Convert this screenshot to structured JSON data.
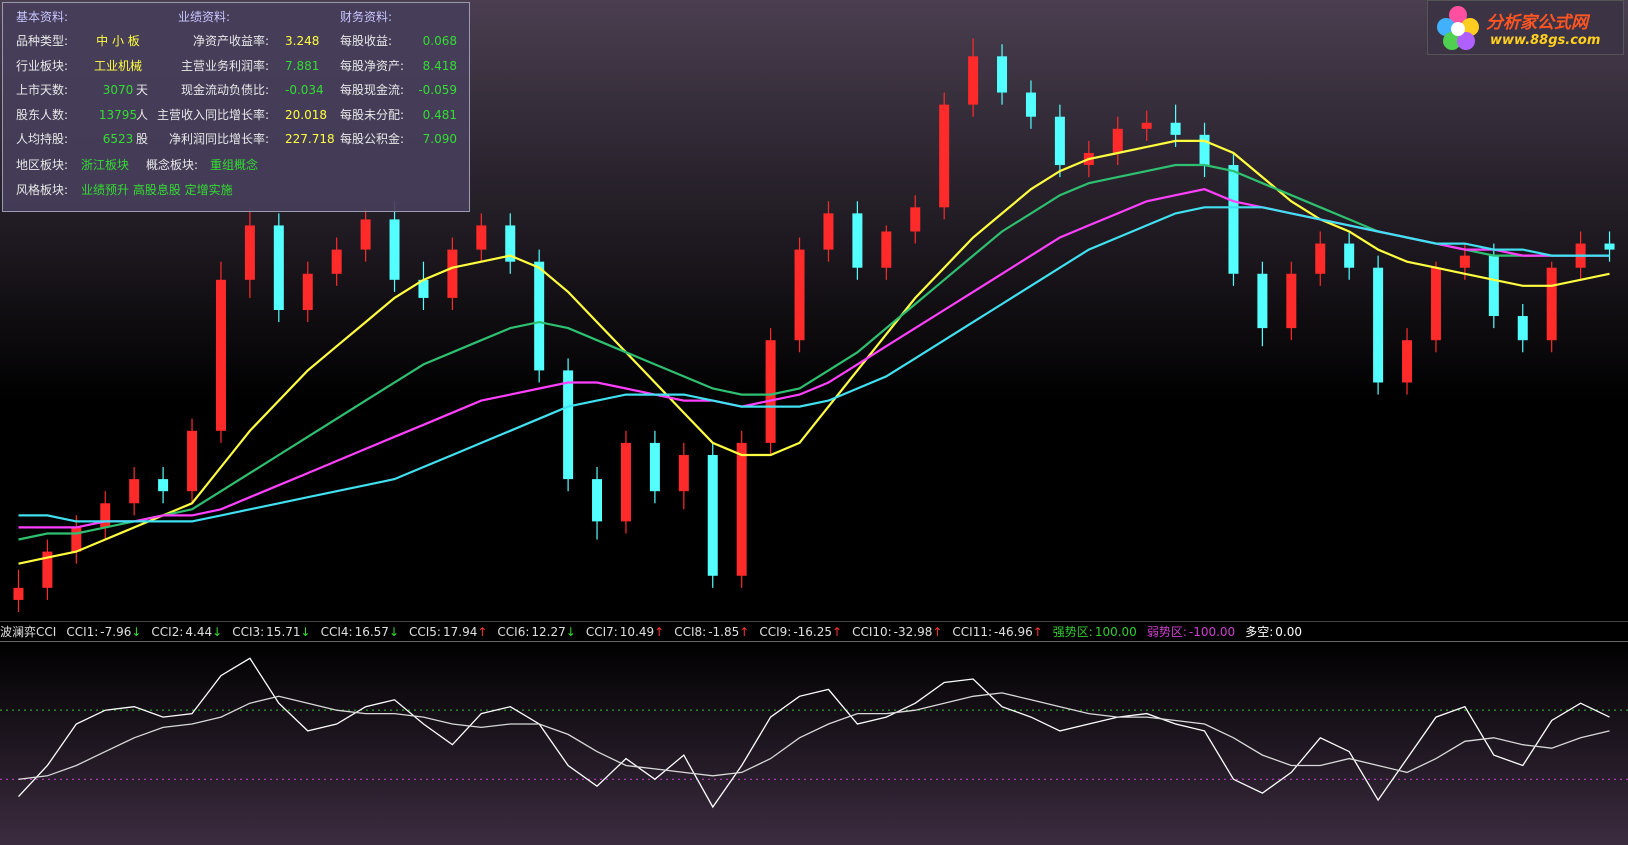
{
  "chart_data": [
    {
      "type": "candlestick",
      "ylim": [
        0,
        100
      ],
      "open": [
        2,
        4,
        10,
        14,
        18,
        22,
        20,
        30,
        55,
        64,
        50,
        56,
        60,
        65,
        55,
        52,
        60,
        64,
        58,
        40,
        22,
        15,
        28,
        20,
        26,
        6,
        28,
        45,
        60,
        66,
        57,
        63,
        67,
        84,
        92,
        86,
        82,
        74,
        76,
        80,
        81,
        79,
        74,
        56,
        47,
        56,
        61,
        57,
        38,
        45,
        57,
        59,
        49,
        45,
        57,
        61
      ],
      "high": [
        7,
        12,
        16,
        20,
        24,
        24,
        32,
        58,
        67,
        66,
        58,
        62,
        67,
        68,
        58,
        62,
        66,
        66,
        60,
        42,
        24,
        30,
        30,
        28,
        28,
        30,
        47,
        62,
        68,
        68,
        64,
        69,
        86,
        95,
        94,
        88,
        84,
        78,
        82,
        83,
        84,
        81,
        76,
        58,
        58,
        63,
        63,
        59,
        47,
        58,
        61,
        61,
        51,
        58,
        63,
        63
      ],
      "low": [
        0,
        2,
        8,
        12,
        16,
        18,
        18,
        28,
        52,
        48,
        48,
        54,
        58,
        53,
        50,
        50,
        58,
        56,
        38,
        20,
        12,
        13,
        18,
        17,
        4,
        4,
        26,
        43,
        58,
        55,
        55,
        61,
        65,
        82,
        84,
        80,
        72,
        72,
        74,
        78,
        77,
        72,
        54,
        44,
        45,
        54,
        55,
        36,
        36,
        43,
        55,
        47,
        43,
        43,
        55,
        58
      ],
      "close": [
        4,
        10,
        14,
        18,
        22,
        20,
        30,
        55,
        64,
        50,
        56,
        60,
        65,
        55,
        52,
        60,
        64,
        58,
        40,
        22,
        15,
        28,
        20,
        26,
        6,
        28,
        45,
        60,
        66,
        57,
        63,
        67,
        84,
        92,
        86,
        82,
        74,
        76,
        80,
        81,
        79,
        74,
        56,
        47,
        56,
        61,
        57,
        38,
        45,
        57,
        59,
        49,
        45,
        57,
        61,
        60
      ],
      "up_color": "#ff2a2a",
      "down_color": "#54ffff",
      "moving_averages": [
        {
          "color": "#ffff40",
          "values": [
            8,
            9,
            10,
            12,
            14,
            16,
            18,
            24,
            30,
            35,
            40,
            44,
            48,
            52,
            55,
            57,
            58,
            59,
            57,
            53,
            48,
            43,
            38,
            33,
            28,
            26,
            26,
            28,
            34,
            40,
            46,
            52,
            57,
            62,
            66,
            70,
            73,
            75,
            76,
            77,
            78,
            78,
            76,
            72,
            68,
            65,
            63,
            60,
            58,
            57,
            56,
            55,
            54,
            54,
            55,
            56
          ]
        },
        {
          "color": "#2ec070",
          "values": [
            12,
            13,
            13,
            14,
            15,
            16,
            17,
            20,
            23,
            26,
            29,
            32,
            35,
            38,
            41,
            43,
            45,
            47,
            48,
            47,
            45,
            43,
            41,
            39,
            37,
            36,
            36,
            37,
            40,
            43,
            47,
            51,
            55,
            59,
            63,
            66,
            69,
            71,
            72,
            73,
            74,
            74,
            73,
            71,
            69,
            67,
            65,
            63,
            62,
            61,
            60,
            59,
            59,
            59,
            59,
            59
          ]
        },
        {
          "color": "#ff40ff",
          "values": [
            14,
            14,
            14,
            15,
            15,
            16,
            16,
            17,
            19,
            21,
            23,
            25,
            27,
            29,
            31,
            33,
            35,
            36,
            37,
            38,
            38,
            37,
            36,
            35,
            35,
            34,
            35,
            36,
            38,
            41,
            44,
            47,
            50,
            53,
            56,
            59,
            62,
            64,
            66,
            68,
            69,
            70,
            68,
            67,
            66,
            65,
            64,
            63,
            62,
            61,
            60,
            60,
            59,
            59,
            59,
            59
          ]
        },
        {
          "color": "#40e0f0",
          "values": [
            16,
            16,
            15,
            15,
            15,
            15,
            15,
            16,
            17,
            18,
            19,
            20,
            21,
            22,
            24,
            26,
            28,
            30,
            32,
            34,
            35,
            36,
            36,
            36,
            35,
            34,
            34,
            34,
            35,
            37,
            39,
            42,
            45,
            48,
            51,
            54,
            57,
            60,
            62,
            64,
            66,
            67,
            67,
            67,
            66,
            65,
            64,
            63,
            62,
            61,
            61,
            60,
            60,
            59,
            59,
            59
          ]
        }
      ]
    },
    {
      "type": "line",
      "title": "波澜弈CCI",
      "ylim": [
        -290,
        300
      ],
      "items": [
        {
          "label": "CCI1:",
          "value": "-7.96",
          "arrow": "↓",
          "arrow_color": "#33dd33"
        },
        {
          "label": "CCI2:",
          "value": "4.44",
          "arrow": "↓",
          "arrow_color": "#33dd33"
        },
        {
          "label": "CCI3:",
          "value": "15.71",
          "arrow": "↓",
          "arrow_color": "#33dd33"
        },
        {
          "label": "CCI4:",
          "value": "16.57",
          "arrow": "↓",
          "arrow_color": "#33dd33"
        },
        {
          "label": "CCI5:",
          "value": "17.94",
          "arrow": "↑",
          "arrow_color": "#ff3333"
        },
        {
          "label": "CCI6:",
          "value": "12.27",
          "arrow": "↓",
          "arrow_color": "#33dd33"
        },
        {
          "label": "CCI7:",
          "value": "10.49",
          "arrow": "↑",
          "arrow_color": "#ff3333"
        },
        {
          "label": "CCI8:",
          "value": "-1.85",
          "arrow": "↑",
          "arrow_color": "#ff3333"
        },
        {
          "label": "CCI9:",
          "value": "-16.25",
          "arrow": "↑",
          "arrow_color": "#ff3333"
        },
        {
          "label": "CCI10:",
          "value": "-32.98",
          "arrow": "↑",
          "arrow_color": "#ff3333"
        },
        {
          "label": "CCI11:",
          "value": "-46.96",
          "arrow": "↑",
          "arrow_color": "#ff3333"
        }
      ],
      "strong": {
        "label": "强势区:",
        "level": {
          "value": 100,
          "label": "100.00"
        },
        "color": "#33cc33"
      },
      "weak": {
        "label": "弱势区:",
        "level": {
          "value": -100,
          "label": "-100.00"
        },
        "color": "#d040d0"
      },
      "balance": {
        "label": "多空:",
        "value": "0.00",
        "color": "#ffffff"
      },
      "lines": [
        {
          "color": "#ffffff",
          "values": [
            -150,
            -60,
            60,
            100,
            110,
            80,
            90,
            200,
            250,
            120,
            40,
            60,
            110,
            130,
            60,
            0,
            90,
            110,
            60,
            -60,
            -120,
            -40,
            -100,
            -30,
            -180,
            -60,
            80,
            140,
            160,
            60,
            80,
            120,
            180,
            190,
            110,
            80,
            40,
            60,
            80,
            90,
            60,
            40,
            -100,
            -140,
            -80,
            20,
            -20,
            -160,
            -40,
            80,
            110,
            -30,
            -60,
            70,
            120,
            80
          ]
        },
        {
          "color": "#d8d8d8",
          "values": [
            -100,
            -90,
            -60,
            -20,
            20,
            50,
            60,
            80,
            120,
            140,
            120,
            100,
            90,
            90,
            80,
            60,
            50,
            60,
            60,
            30,
            -20,
            -60,
            -70,
            -80,
            -90,
            -80,
            -40,
            20,
            60,
            90,
            90,
            100,
            120,
            140,
            150,
            130,
            110,
            90,
            80,
            80,
            70,
            60,
            20,
            -30,
            -60,
            -60,
            -40,
            -60,
            -80,
            -40,
            10,
            20,
            0,
            -10,
            20,
            40
          ]
        }
      ]
    }
  ],
  "info_panel": {
    "headers": [
      "基本资料:",
      "业绩资料:",
      "财务资料:"
    ],
    "rows": [
      [
        {
          "label": "品种类型:",
          "value": "中 小 板",
          "color": "#ffff40"
        },
        {
          "label": "净资产收益率:",
          "value": "3.248",
          "color": "#ffff40"
        },
        {
          "label": "每股收益:",
          "value": "0.068",
          "color": "#33dd33"
        }
      ],
      [
        {
          "label": "行业板块:",
          "value": "工业机械",
          "color": "#ffff40"
        },
        {
          "label": "主营业务利润率:",
          "value": "7.881",
          "color": "#33dd33"
        },
        {
          "label": "每股净资产:",
          "value": "8.418",
          "color": "#33dd33"
        }
      ],
      [
        {
          "label": "上市天数:",
          "value": "3070",
          "unit": "天",
          "color": "#33dd33"
        },
        {
          "label": "现金流动负债比:",
          "value": "-0.034",
          "color": "#33dd33"
        },
        {
          "label": "每股现金流:",
          "value": "-0.059",
          "color": "#33dd33"
        }
      ],
      [
        {
          "label": "股东人数:",
          "value": "13795",
          "unit": "人",
          "color": "#33dd33"
        },
        {
          "label": "主营收入同比增长率:",
          "value": "20.018",
          "color": "#ffff40"
        },
        {
          "label": "每股未分配:",
          "value": "0.481",
          "color": "#33dd33"
        }
      ],
      [
        {
          "label": "人均持股:",
          "value": "6523",
          "unit": "股",
          "color": "#33dd33"
        },
        {
          "label": "净利润同比增长率:",
          "value": "227.718",
          "color": "#ffff40"
        },
        {
          "label": "每股公积金:",
          "value": "7.090",
          "color": "#33dd33"
        }
      ]
    ],
    "extra_rows": [
      [
        {
          "label": "地区板块:",
          "value": "浙江板块",
          "color": "#33dd33"
        },
        {
          "label": "概念板块:",
          "value": "重组概念",
          "color": "#33dd33"
        }
      ],
      [
        {
          "label": "风格板块:",
          "value": "业绩预升 高股息股 定增实施",
          "color": "#33dd33"
        }
      ]
    ]
  },
  "logo": {
    "name": "分析家公式网",
    "url": "www.88gs.com"
  }
}
